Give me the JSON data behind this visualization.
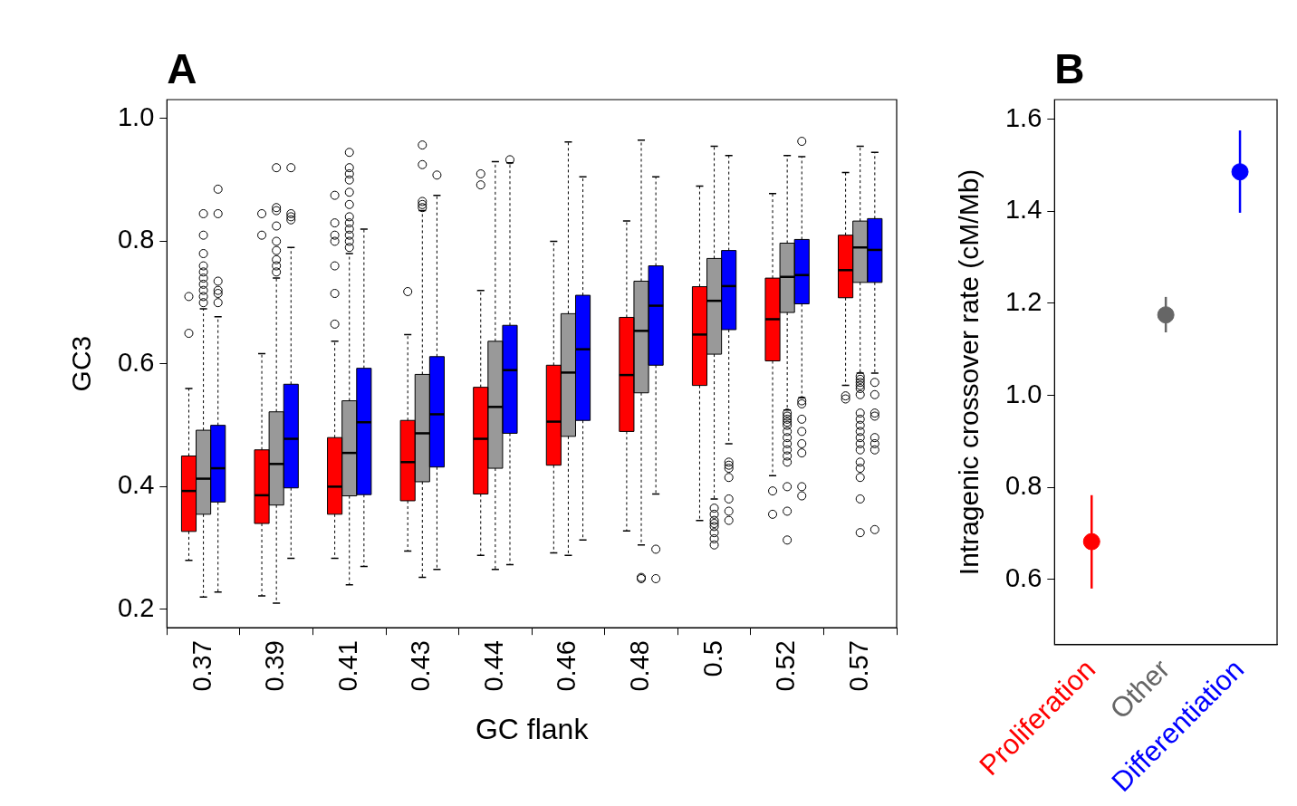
{
  "chart_data": [
    {
      "type": "box",
      "title": "A",
      "xlabel": "GC flank",
      "ylabel": "GC3",
      "categories": [
        "0.37",
        "0.39",
        "0.41",
        "0.43",
        "0.44",
        "0.46",
        "0.48",
        "0.5",
        "0.52",
        "0.57"
      ],
      "ylim": [
        0.17,
        1.031
      ],
      "yticks": [
        0.2,
        0.4,
        0.6,
        0.8,
        {
          "value": 1,
          "label": "1.0"
        }
      ],
      "grid": false,
      "series": [
        {
          "color": "#ff0000",
          "boxes": [
            {
              "low": 0.28,
              "q1": 0.327,
              "median": 0.393,
              "q3": 0.45,
              "high": 0.56,
              "outliers": [
                0.65,
                0.71
              ]
            },
            {
              "low": 0.222,
              "q1": 0.34,
              "median": 0.386,
              "q3": 0.46,
              "high": 0.617,
              "outliers": [
                0.81,
                0.845
              ]
            },
            {
              "low": 0.283,
              "q1": 0.355,
              "median": 0.4,
              "q3": 0.48,
              "high": 0.637,
              "outliers": [
                0.665,
                0.715,
                0.76,
                0.8,
                0.81,
                0.83,
                0.875
              ]
            },
            {
              "low": 0.295,
              "q1": 0.377,
              "median": 0.44,
              "q3": 0.508,
              "high": 0.648,
              "outliers": [
                0.718
              ]
            },
            {
              "low": 0.288,
              "q1": 0.388,
              "median": 0.478,
              "q3": 0.562,
              "high": 0.72,
              "outliers": [
                0.892,
                0.91
              ]
            },
            {
              "low": 0.292,
              "q1": 0.435,
              "median": 0.506,
              "q3": 0.598,
              "high": 0.8
            },
            {
              "low": 0.328,
              "q1": 0.49,
              "median": 0.582,
              "q3": 0.676,
              "high": 0.833
            },
            {
              "low": 0.345,
              "q1": 0.565,
              "median": 0.648,
              "q3": 0.726,
              "high": 0.89
            },
            {
              "low": 0.418,
              "q1": 0.605,
              "median": 0.673,
              "q3": 0.74,
              "high": 0.878,
              "outliers": [
                0.393,
                0.355
              ]
            },
            {
              "low": 0.565,
              "q1": 0.708,
              "median": 0.753,
              "q3": 0.81,
              "high": 0.912,
              "outliers": [
                0.548,
                0.543
              ]
            }
          ]
        },
        {
          "color": "#999999",
          "boxes": [
            {
              "low": 0.22,
              "q1": 0.355,
              "median": 0.413,
              "q3": 0.492,
              "high": 0.69,
              "outliers": [
                0.7,
                0.71,
                0.72,
                0.73,
                0.74,
                0.75,
                0.76,
                0.78,
                0.81,
                0.845
              ]
            },
            {
              "low": 0.21,
              "q1": 0.37,
              "median": 0.437,
              "q3": 0.522,
              "high": 0.74,
              "outliers": [
                0.75,
                0.76,
                0.77,
                0.785,
                0.8,
                0.825,
                0.85,
                0.855,
                0.92
              ]
            },
            {
              "low": 0.24,
              "q1": 0.385,
              "median": 0.455,
              "q3": 0.54,
              "high": 0.78,
              "outliers": [
                0.79,
                0.8,
                0.81,
                0.82,
                0.83,
                0.84,
                0.86,
                0.88,
                0.9,
                0.91,
                0.92,
                0.945
              ]
            },
            {
              "low": 0.252,
              "q1": 0.408,
              "median": 0.487,
              "q3": 0.583,
              "high": 0.85,
              "outliers": [
                0.855,
                0.86,
                0.865,
                0.925,
                0.957
              ]
            },
            {
              "low": 0.265,
              "q1": 0.43,
              "median": 0.53,
              "q3": 0.637,
              "high": 0.93
            },
            {
              "low": 0.288,
              "q1": 0.482,
              "median": 0.586,
              "q3": 0.682,
              "high": 0.962
            },
            {
              "low": 0.305,
              "q1": 0.553,
              "median": 0.654,
              "q3": 0.735,
              "high": 0.965,
              "outliers": [
                0.25,
                0.252
              ]
            },
            {
              "low": 0.38,
              "q1": 0.616,
              "median": 0.703,
              "q3": 0.772,
              "high": 0.955,
              "outliers": [
                0.365,
                0.355,
                0.345,
                0.34,
                0.335,
                0.325,
                0.315,
                0.305
              ]
            },
            {
              "low": 0.525,
              "q1": 0.684,
              "median": 0.742,
              "q3": 0.797,
              "high": 0.94,
              "outliers": [
                0.52,
                0.515,
                0.51,
                0.505,
                0.5,
                0.49,
                0.48,
                0.47,
                0.46,
                0.45,
                0.44,
                0.4,
                0.36,
                0.313
              ]
            },
            {
              "low": 0.585,
              "q1": 0.733,
              "median": 0.79,
              "q3": 0.833,
              "high": 0.955,
              "outliers": [
                0.58,
                0.575,
                0.57,
                0.565,
                0.56,
                0.55,
                0.52,
                0.51,
                0.5,
                0.49,
                0.48,
                0.47,
                0.46,
                0.44,
                0.43,
                0.415,
                0.38,
                0.325
              ]
            }
          ]
        },
        {
          "color": "#0000ff",
          "boxes": [
            {
              "low": 0.228,
              "q1": 0.375,
              "median": 0.43,
              "q3": 0.5,
              "high": 0.677,
              "outliers": [
                0.7,
                0.715,
                0.72,
                0.735,
                0.845,
                0.885
              ]
            },
            {
              "low": 0.283,
              "q1": 0.398,
              "median": 0.478,
              "q3": 0.567,
              "high": 0.79,
              "outliers": [
                0.835,
                0.84,
                0.845,
                0.92
              ]
            },
            {
              "low": 0.27,
              "q1": 0.387,
              "median": 0.505,
              "q3": 0.593,
              "high": 0.82
            },
            {
              "low": 0.265,
              "q1": 0.432,
              "median": 0.518,
              "q3": 0.612,
              "high": 0.875,
              "outliers": [
                0.908
              ]
            },
            {
              "low": 0.273,
              "q1": 0.487,
              "median": 0.59,
              "q3": 0.663,
              "high": 0.928,
              "outliers": [
                0.933
              ]
            },
            {
              "low": 0.313,
              "q1": 0.508,
              "median": 0.624,
              "q3": 0.712,
              "high": 0.905
            },
            {
              "low": 0.388,
              "q1": 0.598,
              "median": 0.695,
              "q3": 0.76,
              "high": 0.905,
              "outliers": [
                0.298,
                0.25
              ]
            },
            {
              "low": 0.47,
              "q1": 0.656,
              "median": 0.727,
              "q3": 0.785,
              "high": 0.94,
              "outliers": [
                0.44,
                0.435,
                0.43,
                0.415,
                0.38,
                0.36,
                0.345
              ]
            },
            {
              "low": 0.545,
              "q1": 0.698,
              "median": 0.745,
              "q3": 0.803,
              "high": 0.938,
              "outliers": [
                0.54,
                0.535,
                0.51,
                0.49,
                0.47,
                0.455,
                0.4,
                0.385,
                0.963
              ]
            },
            {
              "low": 0.585,
              "q1": 0.733,
              "median": 0.786,
              "q3": 0.837,
              "high": 0.945,
              "outliers": [
                0.57,
                0.55,
                0.52,
                0.515,
                0.48,
                0.47,
                0.46,
                0.33
              ]
            }
          ]
        }
      ]
    },
    {
      "type": "scatter",
      "title": "B",
      "ylabel": "Intragenic crossover rate (cM/Mb)",
      "categories": [
        "Proliferation",
        "Other",
        "Differentiation"
      ],
      "ylim": [
        0.458,
        1.643
      ],
      "yticks": [
        0.6,
        0.8,
        {
          "value": 1,
          "label": "1.0"
        },
        1.2,
        1.4,
        1.6
      ],
      "grid": false,
      "marker": "circle",
      "series": [
        {
          "colors": [
            "#ff0000",
            "#666666",
            "#0000ff"
          ],
          "values": [
            0.682,
            1.175,
            1.486
          ],
          "errors": [
            [
              0.58,
              0.783
            ],
            [
              1.137,
              1.214
            ],
            [
              1.397,
              1.576
            ]
          ]
        }
      ]
    }
  ]
}
